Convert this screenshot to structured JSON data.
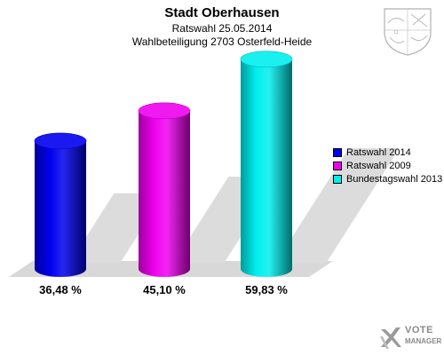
{
  "header": {
    "title": "Stadt Oberhausen",
    "subtitle_1": "Ratswahl 25.05.2014",
    "subtitle_2": "Wahlbeteiligung 2703 Osterfeld-Heide"
  },
  "chart_data": {
    "type": "bar",
    "categories": [
      "Ratswahl 2014",
      "Ratswahl 2009",
      "Bundestagswahl 2013"
    ],
    "values": [
      36.48,
      45.1,
      59.83
    ],
    "value_labels": [
      "36,48 %",
      "45,10 %",
      "59,83 %"
    ],
    "colors": [
      "#0000ee",
      "#ee00ee",
      "#00eeee"
    ],
    "title": "Stadt Oberhausen",
    "xlabel": "",
    "ylabel": "",
    "ylim": [
      0,
      60
    ],
    "grid": false,
    "legend": "right"
  },
  "legend": {
    "items": [
      {
        "label": "Ratswahl 2014",
        "color": "#0000ee"
      },
      {
        "label": "Ratswahl 2009",
        "color": "#ee00ee"
      },
      {
        "label": "Bundestagswahl 2013",
        "color": "#00eeee"
      }
    ]
  },
  "branding": {
    "line1": "VOTE",
    "line2": "MANAGER",
    "coat_icon": "coat-of-arms-icon",
    "logo_icon": "vote-manager-logo-icon"
  }
}
